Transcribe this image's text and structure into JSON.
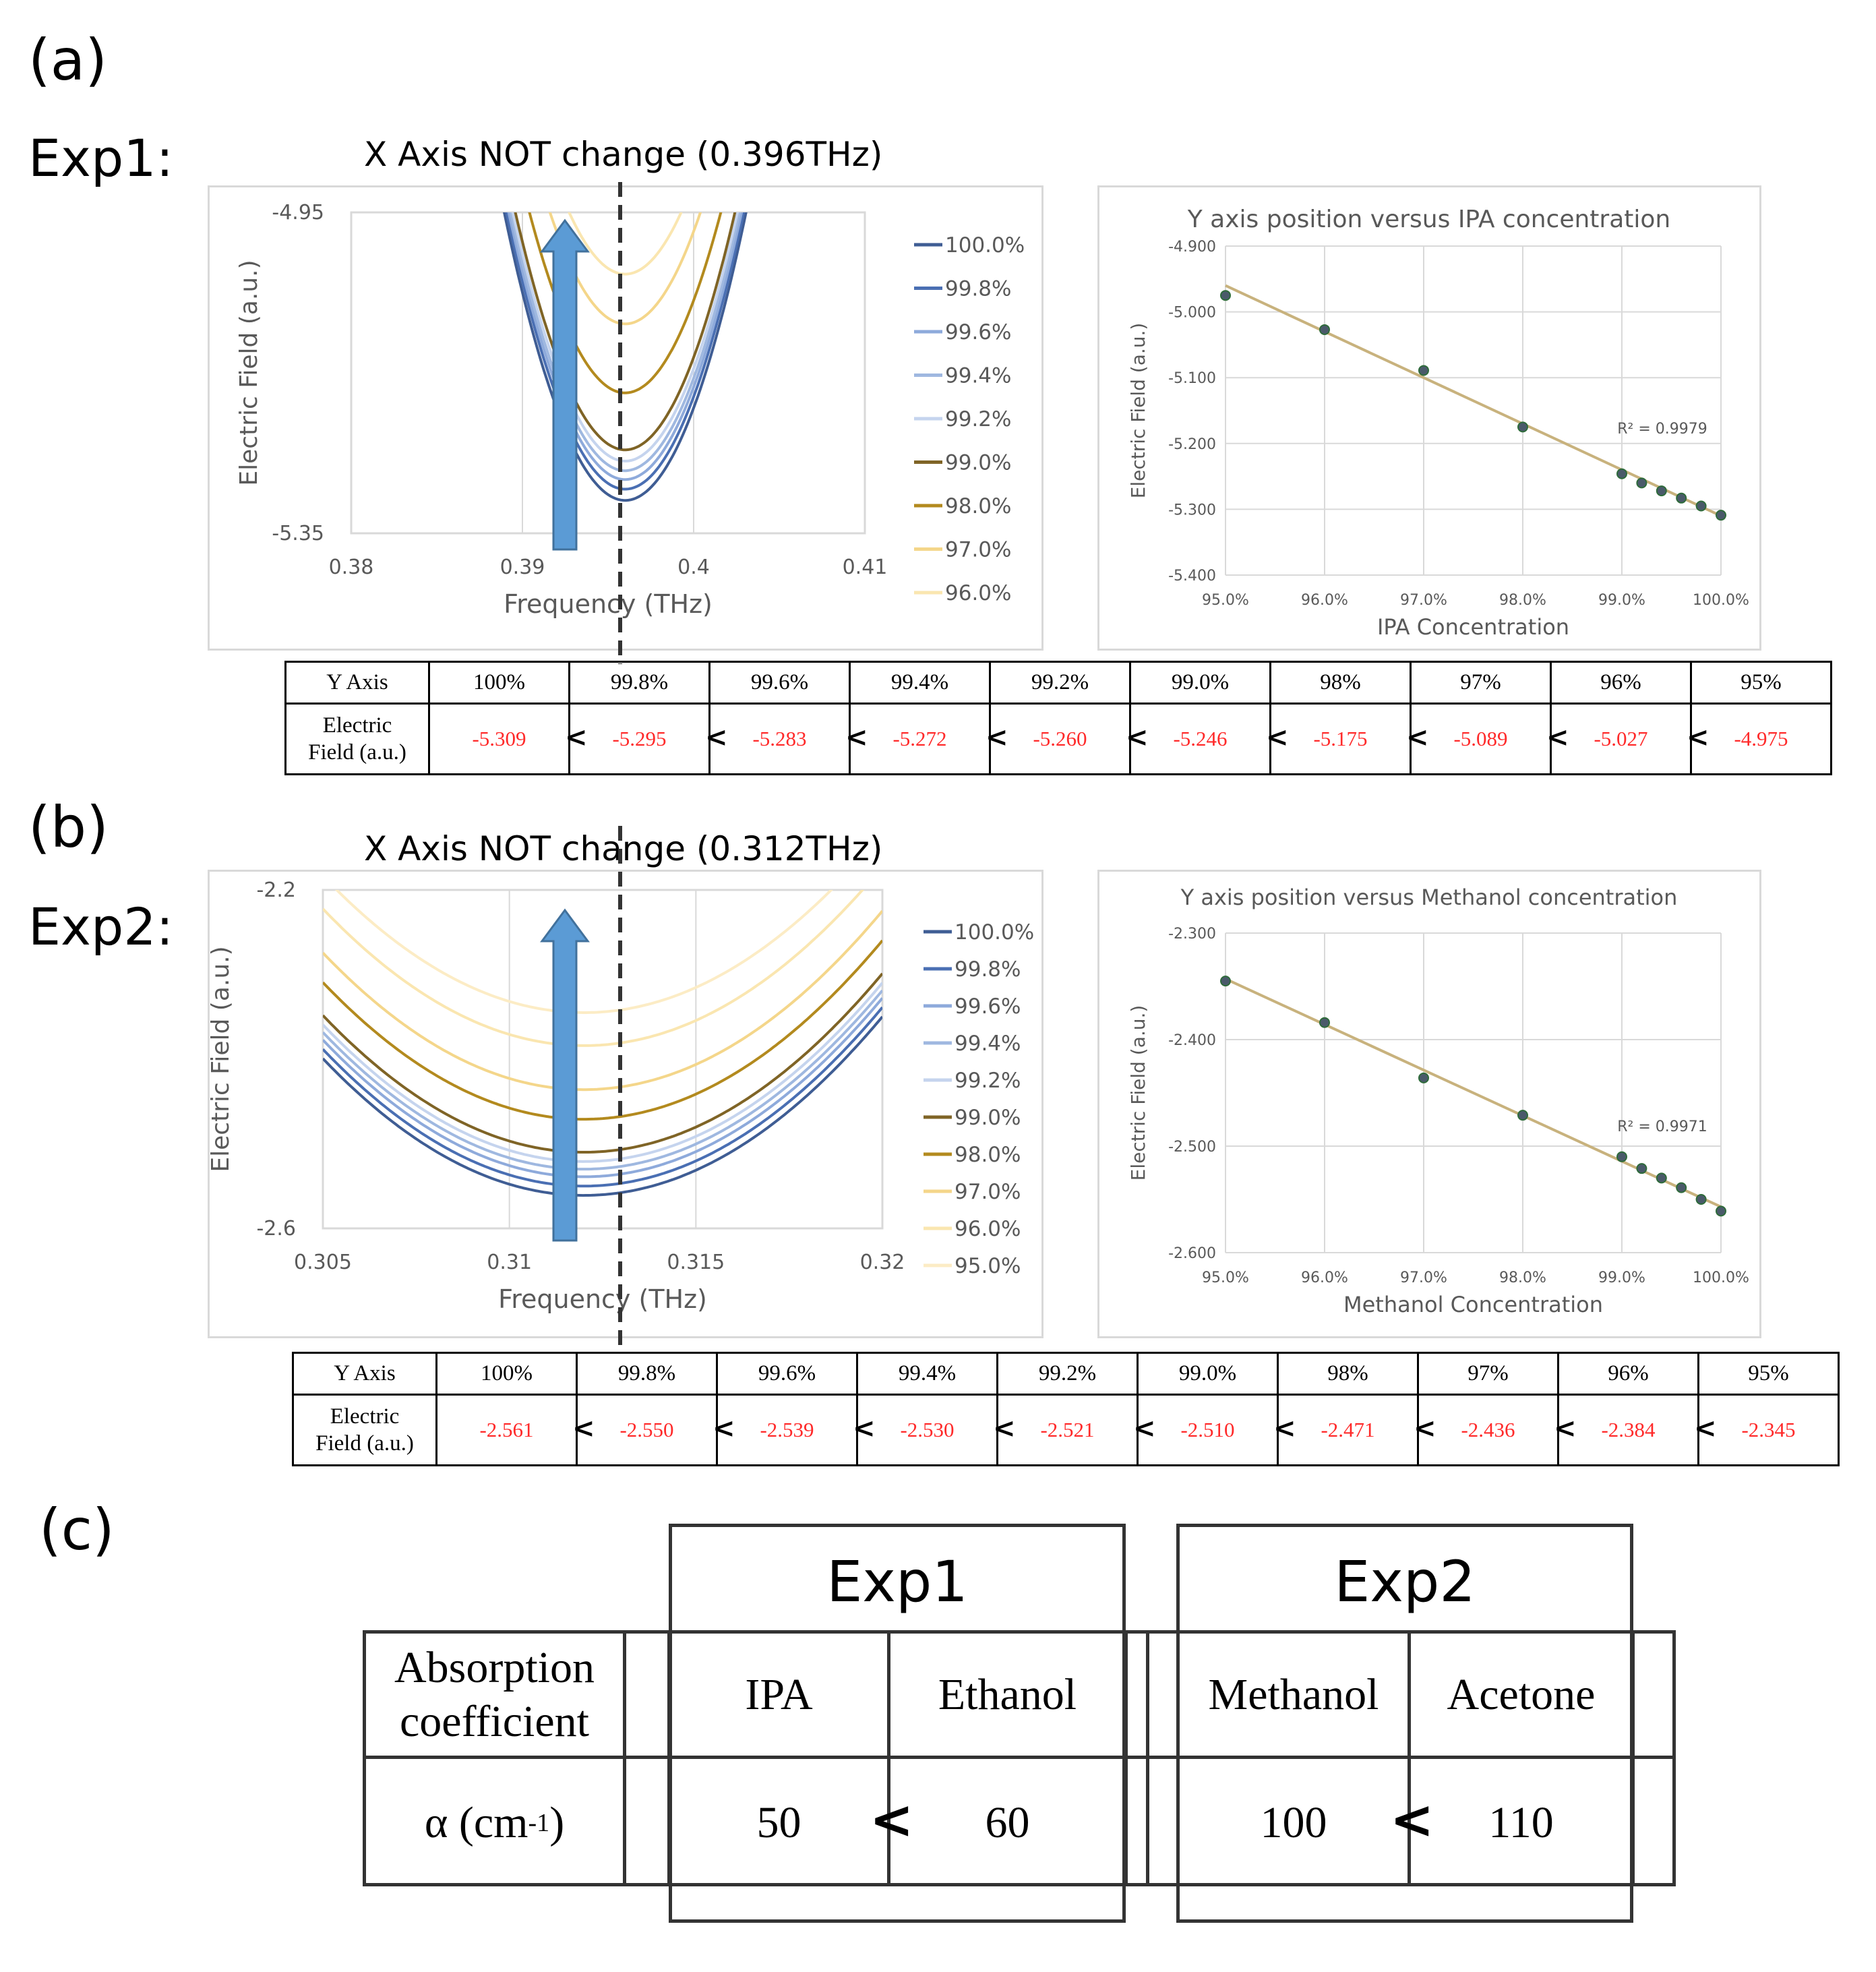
{
  "panel_a": {
    "label": "(a)",
    "exp_label": "Exp1:",
    "left_title": "X Axis NOT change (0.396THz)",
    "table": {
      "header_label": "Y Axis",
      "row_label_line1": "Electric",
      "row_label_line2": "Field (a.u.)",
      "separator": "<",
      "columns": [
        "100%",
        "99.8%",
        "99.6%",
        "99.4%",
        "99.2%",
        "99.0%",
        "98%",
        "97%",
        "96%",
        "95%"
      ],
      "values": [
        "-5.309",
        "-5.295",
        "-5.283",
        "-5.272",
        "-5.260",
        "-5.246",
        "-5.175",
        "-5.089",
        "-5.027",
        "-4.975"
      ]
    }
  },
  "panel_b": {
    "label": "(b)",
    "exp_label": "Exp2:",
    "left_title": "X Axis NOT change (0.312THz)",
    "table": {
      "header_label": "Y Axis",
      "row_label_line1": "Electric",
      "row_label_line2": "Field (a.u.)",
      "separator": "<",
      "columns": [
        "100%",
        "99.8%",
        "99.6%",
        "99.4%",
        "99.2%",
        "99.0%",
        "98%",
        "97%",
        "96%",
        "95%"
      ],
      "values": [
        "-2.561",
        "-2.550",
        "-2.539",
        "-2.530",
        "-2.521",
        "-2.510",
        "-2.471",
        "-2.436",
        "-2.384",
        "-2.345"
      ]
    }
  },
  "panel_c": {
    "label": "(c)",
    "exp1": "Exp1",
    "exp2": "Exp2",
    "row_header_line1": "Absorption",
    "row_header_line2": "coefficient",
    "alpha_label": "α (cm",
    "alpha_sup": "-1",
    "alpha_close": " )",
    "exp1_a": "IPA",
    "exp1_b": "Ethanol",
    "exp2_a": "Methanol",
    "exp2_b": "Acetone",
    "v_ipa": "50",
    "v_ethanol": "60",
    "v_methanol": "100",
    "v_acetone": "110",
    "separator": "<"
  },
  "colors": {
    "c100": "#3f5d94",
    "c998": "#4a6fb3",
    "c996": "#8eaadb",
    "c994": "#9fb8e0",
    "c992": "#c5d4ee",
    "c990": "#7f6426",
    "c980": "#b38a1e",
    "c970": "#f4d68a",
    "c960": "#fae6b0",
    "c950": "#fcecc5",
    "arrow": "#5b9bd5",
    "arrow_edge": "#41719c",
    "red": "#ff2a2a",
    "grid": "#d9d9d9",
    "fit": "#c8b27d"
  },
  "chart_data": [
    {
      "id": "exp1-spectra",
      "type": "line",
      "title": "X Axis NOT change (0.396THz)",
      "xlabel": "Frequency (THz)",
      "ylabel": "Electric Field (a.u.)",
      "xlim": [
        0.38,
        0.41
      ],
      "ylim": [
        -5.35,
        -4.95
      ],
      "xticks": [
        "0.38",
        "0.39",
        "0.4",
        "0.41"
      ],
      "yticks": [
        "-5.35",
        "-4.95"
      ],
      "minimum_frequency": 0.396,
      "series": [
        {
          "name": "100.0%",
          "color_key": "c100",
          "min": -5.309
        },
        {
          "name": "99.8%",
          "color_key": "c998",
          "min": -5.295
        },
        {
          "name": "99.6%",
          "color_key": "c996",
          "min": -5.283
        },
        {
          "name": "99.4%",
          "color_key": "c994",
          "min": -5.272
        },
        {
          "name": "99.2%",
          "color_key": "c992",
          "min": -5.26
        },
        {
          "name": "99.0%",
          "color_key": "c990",
          "min": -5.246
        },
        {
          "name": "98.0%",
          "color_key": "c980",
          "min": -5.175
        },
        {
          "name": "97.0%",
          "color_key": "c970",
          "min": -5.089
        },
        {
          "name": "96.0%",
          "color_key": "c960",
          "min": -5.027
        }
      ]
    },
    {
      "id": "exp1-fit",
      "type": "scatter",
      "title": "Y axis position versus IPA concentration",
      "xlabel": "IPA Concentration",
      "ylabel": "Electric Field (a.u.)",
      "xlim": [
        95,
        100
      ],
      "ylim": [
        -5.4,
        -4.9
      ],
      "xticks": [
        "95.0%",
        "96.0%",
        "97.0%",
        "98.0%",
        "99.0%",
        "100.0%"
      ],
      "yticks": [
        "-5.400",
        "-5.300",
        "-5.200",
        "-5.100",
        "-5.000",
        "-4.900"
      ],
      "r2_label": "R² = 0.9979",
      "x": [
        95,
        96,
        97,
        98,
        99,
        99.2,
        99.4,
        99.6,
        99.8,
        100
      ],
      "y": [
        -4.975,
        -5.027,
        -5.089,
        -5.175,
        -5.246,
        -5.26,
        -5.272,
        -5.283,
        -5.295,
        -5.309
      ],
      "fit": [
        [
          95,
          -4.96
        ],
        [
          100,
          -5.31
        ]
      ]
    },
    {
      "id": "exp2-spectra",
      "type": "line",
      "title": "X Axis NOT change (0.312THz)",
      "xlabel": "Frequency (THz)",
      "ylabel": "Electric Field (a.u.)",
      "xlim": [
        0.305,
        0.32
      ],
      "ylim": [
        -2.6,
        -2.2
      ],
      "xticks": [
        "0.305",
        "0.31",
        "0.315",
        "0.32"
      ],
      "yticks": [
        "-2.6",
        "-2.2"
      ],
      "minimum_frequency": 0.312,
      "series": [
        {
          "name": "100.0%",
          "color_key": "c100",
          "min": -2.561
        },
        {
          "name": "99.8%",
          "color_key": "c998",
          "min": -2.55
        },
        {
          "name": "99.6%",
          "color_key": "c996",
          "min": -2.539
        },
        {
          "name": "99.4%",
          "color_key": "c994",
          "min": -2.53
        },
        {
          "name": "99.2%",
          "color_key": "c992",
          "min": -2.521
        },
        {
          "name": "99.0%",
          "color_key": "c990",
          "min": -2.51
        },
        {
          "name": "98.0%",
          "color_key": "c980",
          "min": -2.471
        },
        {
          "name": "97.0%",
          "color_key": "c970",
          "min": -2.436
        },
        {
          "name": "96.0%",
          "color_key": "c960",
          "min": -2.384
        },
        {
          "name": "95.0%",
          "color_key": "c950",
          "min": -2.345
        }
      ]
    },
    {
      "id": "exp2-fit",
      "type": "scatter",
      "title": "Y axis position versus Methanol concentration",
      "xlabel": "Methanol Concentration",
      "ylabel": "Electric Field (a.u.)",
      "xlim": [
        95,
        100
      ],
      "ylim": [
        -2.6,
        -2.3
      ],
      "xticks": [
        "95.0%",
        "96.0%",
        "97.0%",
        "98.0%",
        "99.0%",
        "100.0%"
      ],
      "yticks": [
        "-2.600",
        "-2.500",
        "-2.400",
        "-2.300"
      ],
      "r2_label": "R² = 0.9971",
      "x": [
        95,
        96,
        97,
        98,
        99,
        99.2,
        99.4,
        99.6,
        99.8,
        100
      ],
      "y": [
        -2.345,
        -2.384,
        -2.436,
        -2.471,
        -2.51,
        -2.521,
        -2.53,
        -2.539,
        -2.55,
        -2.561
      ],
      "fit": [
        [
          95,
          -2.343
        ],
        [
          100,
          -2.557
        ]
      ]
    }
  ]
}
